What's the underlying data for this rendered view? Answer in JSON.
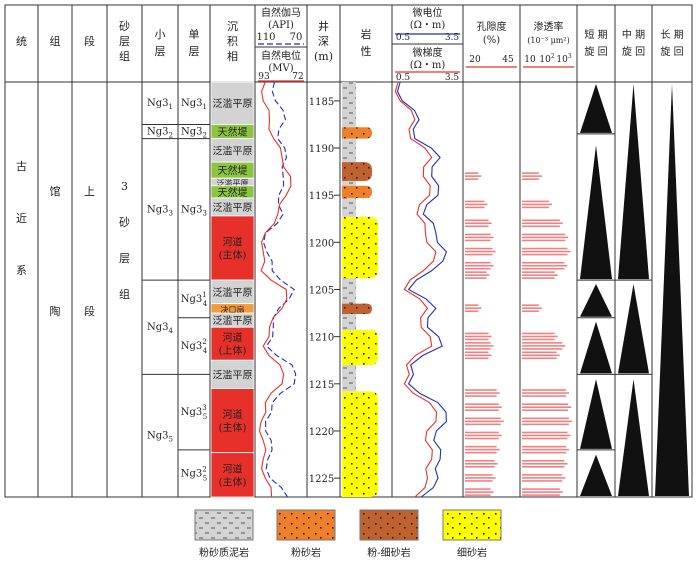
{
  "header": {
    "system": "统",
    "group": "组",
    "section": "段",
    "sand_group": [
      "砂",
      "层",
      "组"
    ],
    "sublayer": [
      "小",
      "层"
    ],
    "single_layer": [
      "单",
      "层"
    ],
    "facies": [
      "沉",
      "积",
      "相"
    ],
    "gamma": {
      "title": "自然伽马",
      "unit": "(API)",
      "min": "110",
      "max": "70"
    },
    "sp": {
      "title": "自然电位",
      "unit": "(MV)",
      "min": "93",
      "max": "72"
    },
    "depth": [
      "井",
      "深",
      "(m)"
    ],
    "lithology": [
      "岩",
      "性"
    ],
    "micro_potential": {
      "title": "微电位",
      "unit": "(Ω・m)",
      "min": "0.5",
      "max": "3.5"
    },
    "micro_gradient": {
      "title": "微梯度",
      "unit": "(Ω・m)",
      "min": "0.5",
      "max": "3.5"
    },
    "porosity": {
      "title": "孔隙度",
      "unit": "(%)",
      "min": "20",
      "max": "45"
    },
    "permeability": {
      "title": "渗透率",
      "unit": "(10⁻³ μm²)",
      "ticks": [
        "10",
        "10",
        "10"
      ],
      "exps": [
        "",
        "2",
        "3"
      ]
    },
    "short_cycle": [
      "短 期",
      "旋 回"
    ],
    "mid_cycle": [
      "中 期",
      "旋 回"
    ],
    "long_cycle": [
      "长 期",
      "旋 回"
    ]
  },
  "strat": {
    "system": [
      "古",
      "近",
      "系"
    ],
    "group": [
      "馆",
      "陶"
    ],
    "section": [
      "上",
      "段"
    ],
    "sand_group": [
      "3",
      "砂",
      "层",
      "组"
    ]
  },
  "sublayers": [
    {
      "base": "Ng3",
      "sub": "1",
      "sup": "",
      "top": 1183,
      "bottom": 1187.5
    },
    {
      "base": "Ng3",
      "sub": "2",
      "sup": "",
      "top": 1187.5,
      "bottom": 1189
    },
    {
      "base": "Ng3",
      "sub": "3",
      "sup": "",
      "top": 1189,
      "bottom": 1204
    },
    {
      "base": "Ng3",
      "sub": "4",
      "sup": "",
      "top": 1204,
      "bottom": 1214
    },
    {
      "base": "Ng3",
      "sub": "5",
      "sup": "",
      "top": 1214,
      "bottom": 1227
    }
  ],
  "single_layers": [
    {
      "base": "Ng3",
      "sub": "1",
      "sup": "",
      "top": 1183,
      "bottom": 1187.5
    },
    {
      "base": "Ng3",
      "sub": "2",
      "sup": "",
      "top": 1187.5,
      "bottom": 1189
    },
    {
      "base": "Ng3",
      "sub": "3",
      "sup": "",
      "top": 1189,
      "bottom": 1204
    },
    {
      "base": "Ng3",
      "sub": "4",
      "sup": "1",
      "top": 1204,
      "bottom": 1208
    },
    {
      "base": "Ng3",
      "sub": "4",
      "sup": "2",
      "top": 1208,
      "bottom": 1214
    },
    {
      "base": "Ng3",
      "sub": "5",
      "sup": "3",
      "top": 1214,
      "bottom": 1222
    },
    {
      "base": "Ng3",
      "sub": "5",
      "sup": "2",
      "top": 1222,
      "bottom": 1227
    }
  ],
  "facies": [
    {
      "label": "泛滥平原",
      "top": 1183,
      "bottom": 1187.5,
      "color": "#d3d3d3"
    },
    {
      "label": "天然堤",
      "top": 1187.5,
      "bottom": 1189,
      "color": "#8cc63f"
    },
    {
      "label": "泛滥平原",
      "top": 1189,
      "bottom": 1191.5,
      "color": "#d3d3d3"
    },
    {
      "label": "天然堤",
      "top": 1191.5,
      "bottom": 1193.2,
      "color": "#8cc63f"
    },
    {
      "label": "泛滥平原",
      "top": 1193.2,
      "bottom": 1194,
      "color": "#d3d3d3"
    },
    {
      "label": "天然堤",
      "top": 1194,
      "bottom": 1195.3,
      "color": "#8cc63f"
    },
    {
      "label": "泛滥平原",
      "top": 1195.3,
      "bottom": 1197.2,
      "color": "#d3d3d3"
    },
    {
      "label": "河道\n(主体)",
      "top": 1197.2,
      "bottom": 1204,
      "color": "#e8302a"
    },
    {
      "label": "泛滥平原",
      "top": 1204,
      "bottom": 1206.5,
      "color": "#d3d3d3"
    },
    {
      "label": "决口扇",
      "top": 1206.5,
      "bottom": 1207.5,
      "color": "#f39a3c"
    },
    {
      "label": "泛滥平原",
      "top": 1207.5,
      "bottom": 1209,
      "color": "#d3d3d3"
    },
    {
      "label": "河道\n(上体)",
      "top": 1209,
      "bottom": 1212.5,
      "color": "#e8302a"
    },
    {
      "label": "泛滥平原",
      "top": 1212.5,
      "bottom": 1215.5,
      "color": "#d3d3d3"
    },
    {
      "label": "河道\n(主体)",
      "top": 1215.5,
      "bottom": 1222.3,
      "color": "#e8302a"
    },
    {
      "label": "河道\n(主体)",
      "top": 1222.3,
      "bottom": 1227,
      "color": "#e8302a"
    }
  ],
  "depth_ticks": [
    1185,
    1190,
    1195,
    1200,
    1205,
    1210,
    1215,
    1220,
    1225
  ],
  "lithology": [
    {
      "type": "mudstone",
      "top": 1183,
      "bottom": 1187.8
    },
    {
      "type": "siltstone",
      "top": 1187.8,
      "bottom": 1189
    },
    {
      "type": "mudstone",
      "top": 1189,
      "bottom": 1191.5
    },
    {
      "type": "silt_fine",
      "top": 1191.5,
      "bottom": 1193.5
    },
    {
      "type": "mudstone",
      "top": 1193.5,
      "bottom": 1194
    },
    {
      "type": "siltstone",
      "top": 1194,
      "bottom": 1195.3
    },
    {
      "type": "mudstone",
      "top": 1195.3,
      "bottom": 1197.3
    },
    {
      "type": "finesand",
      "top": 1197.3,
      "bottom": 1203.8
    },
    {
      "type": "mudstone",
      "top": 1203.8,
      "bottom": 1206.5
    },
    {
      "type": "silt_fine",
      "top": 1206.5,
      "bottom": 1207.6
    },
    {
      "type": "mudstone",
      "top": 1207.6,
      "bottom": 1209.3
    },
    {
      "type": "finesand",
      "top": 1209.3,
      "bottom": 1213
    },
    {
      "type": "mudstone",
      "top": 1213,
      "bottom": 1215.8
    },
    {
      "type": "finesand",
      "top": 1215.8,
      "bottom": 1227
    }
  ],
  "cycles": {
    "short": [
      {
        "top": 1183,
        "bottom": 1188.5
      },
      {
        "top": 1189.5,
        "bottom": 1204
      },
      {
        "top": 1204.2,
        "bottom": 1208
      },
      {
        "top": 1208.2,
        "bottom": 1214
      },
      {
        "top": 1214.3,
        "bottom": 1222
      },
      {
        "top": 1222.3,
        "bottom": 1227
      }
    ],
    "mid": [
      {
        "top": 1183,
        "bottom": 1204
      },
      {
        "top": 1204.2,
        "bottom": 1214
      },
      {
        "top": 1214.3,
        "bottom": 1227
      }
    ],
    "long": [
      {
        "top": 1183,
        "bottom": 1227
      }
    ]
  },
  "legend": [
    {
      "type": "mudstone",
      "label": "粉砂质泥岩"
    },
    {
      "type": "siltstone",
      "label": "粉砂岩"
    },
    {
      "type": "silt_fine",
      "label": "粉-细砂岩"
    },
    {
      "type": "finesand",
      "label": "细砂岩"
    }
  ],
  "colors": {
    "mudstone": "#d3d3d3",
    "siltstone": "#f07f2a",
    "silt_fine": "#c0622f",
    "finesand": "#ffff00",
    "red": "#e8302a",
    "blue": "#1f2fb8",
    "bar": "#f28080"
  },
  "chart_data": {
    "type": "well-log",
    "depth_range": [
      1183,
      1227
    ],
    "logs": [
      {
        "name": "自然伽马",
        "unit": "API",
        "range": [
          110,
          70
        ],
        "style": "dashed-blue",
        "depth": [
          1183,
          1185,
          1187,
          1189,
          1191,
          1193,
          1195,
          1197,
          1199,
          1201,
          1203,
          1205,
          1207,
          1209,
          1211,
          1213,
          1215,
          1217,
          1219,
          1221,
          1223,
          1225,
          1227
        ],
        "values": [
          96,
          95,
          86,
          93,
          85,
          88,
          92,
          88,
          104,
          103,
          98,
          78,
          92,
          97,
          103,
          80,
          78,
          98,
          104,
          99,
          102,
          100,
          84
        ]
      },
      {
        "name": "自然电位",
        "unit": "MV",
        "range": [
          93,
          72
        ],
        "style": "solid-red",
        "depth": [
          1183,
          1185,
          1187,
          1189,
          1191,
          1193,
          1195,
          1197,
          1199,
          1201,
          1203,
          1205,
          1207,
          1209,
          1211,
          1213,
          1215,
          1217,
          1219,
          1221,
          1223,
          1225,
          1227
        ],
        "values": [
          90,
          91,
          88,
          86,
          82,
          78,
          80,
          84,
          90,
          91,
          92,
          80,
          82,
          88,
          91,
          83,
          82,
          90,
          92,
          91,
          91,
          90,
          87
        ]
      },
      {
        "name": "微电位",
        "unit": "Ω・m",
        "range": [
          0.5,
          3.5
        ],
        "style": "solid-blue",
        "depth": [
          1183,
          1185,
          1187,
          1189,
          1191,
          1193,
          1195,
          1197,
          1199,
          1201,
          1203,
          1205,
          1207,
          1209,
          1211,
          1213,
          1215,
          1217,
          1219,
          1221,
          1223,
          1225,
          1227
        ],
        "values": [
          0.7,
          0.8,
          1.6,
          1.4,
          2.6,
          2.2,
          2.5,
          1.8,
          2.4,
          2.9,
          2.2,
          1.1,
          2.4,
          2.0,
          2.7,
          1.2,
          1.1,
          2.5,
          2.9,
          2.3,
          2.6,
          2.5,
          1.7
        ]
      },
      {
        "name": "微梯度",
        "unit": "Ω・m",
        "range": [
          0.5,
          3.5
        ],
        "style": "solid-red",
        "depth": [
          1183,
          1185,
          1187,
          1189,
          1191,
          1193,
          1195,
          1197,
          1199,
          1201,
          1203,
          1205,
          1207,
          1209,
          1211,
          1213,
          1215,
          1217,
          1219,
          1221,
          1223,
          1225,
          1227
        ],
        "values": [
          0.6,
          0.7,
          1.4,
          1.2,
          2.2,
          1.8,
          2.1,
          1.5,
          1.9,
          2.4,
          1.8,
          0.9,
          2.0,
          1.7,
          2.2,
          1.0,
          0.9,
          2.1,
          2.4,
          1.9,
          2.2,
          2.0,
          1.4
        ]
      }
    ],
    "bars": [
      {
        "name": "孔隙度",
        "unit": "%",
        "range": [
          20,
          45
        ],
        "scale": "linear",
        "depth": [
          1193,
          1196,
          1198,
          1199.5,
          1201,
          1202.5,
          1203.5,
          1207,
          1210,
          1211,
          1212,
          1216,
          1217.5,
          1219,
          1220.5,
          1222,
          1223.5,
          1225,
          1226.5
        ],
        "values": [
          28,
          31,
          33,
          34,
          35,
          34,
          32,
          28,
          33,
          34,
          33,
          37,
          38,
          39,
          38,
          37,
          36,
          35,
          34
        ]
      },
      {
        "name": "渗透率",
        "unit": "10⁻³ μm²",
        "range": [
          10,
          1000
        ],
        "scale": "log",
        "depth": [
          1193,
          1196,
          1198,
          1199.5,
          1201,
          1202.5,
          1203.5,
          1207,
          1210,
          1211,
          1212,
          1216,
          1217.5,
          1219,
          1220.5,
          1222,
          1223.5,
          1225,
          1226.5
        ],
        "values": [
          60,
          150,
          400,
          650,
          800,
          600,
          250,
          60,
          250,
          500,
          300,
          700,
          850,
          900,
          800,
          700,
          600,
          500,
          400
        ]
      }
    ]
  }
}
